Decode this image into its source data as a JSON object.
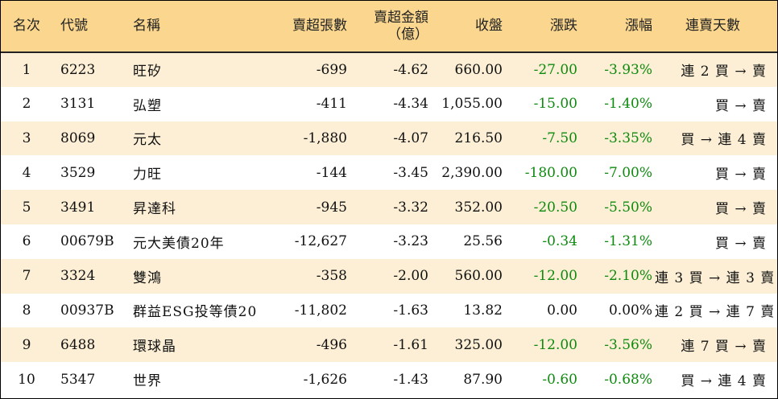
{
  "headers": {
    "rank": "名次",
    "code": "代號",
    "name": "名稱",
    "sell_lots": "賣超張數",
    "sell_amount_line1": "賣超金額",
    "sell_amount_line2": "（億）",
    "close": "收盤",
    "change": "漲跌",
    "change_pct": "漲幅",
    "streak": "連賣天數"
  },
  "rows": [
    {
      "rank": "1",
      "code": "6223",
      "name": "旺矽",
      "sell_lots": "-699",
      "sell_amount": "-4.62",
      "close": "660.00",
      "change": "-27.00",
      "change_pct": "-3.93%",
      "streak": "連 2 買 → 賣"
    },
    {
      "rank": "2",
      "code": "3131",
      "name": "弘塑",
      "sell_lots": "-411",
      "sell_amount": "-4.34",
      "close": "1,055.00",
      "change": "-15.00",
      "change_pct": "-1.40%",
      "streak": "買 → 賣"
    },
    {
      "rank": "3",
      "code": "8069",
      "name": "元太",
      "sell_lots": "-1,880",
      "sell_amount": "-4.07",
      "close": "216.50",
      "change": "-7.50",
      "change_pct": "-3.35%",
      "streak": "買 → 連 4 賣"
    },
    {
      "rank": "4",
      "code": "3529",
      "name": "力旺",
      "sell_lots": "-144",
      "sell_amount": "-3.45",
      "close": "2,390.00",
      "change": "-180.00",
      "change_pct": "-7.00%",
      "streak": "買 → 賣"
    },
    {
      "rank": "5",
      "code": "3491",
      "name": "昇達科",
      "sell_lots": "-945",
      "sell_amount": "-3.32",
      "close": "352.00",
      "change": "-20.50",
      "change_pct": "-5.50%",
      "streak": "買 → 賣"
    },
    {
      "rank": "6",
      "code": "00679B",
      "name": "元大美債20年",
      "sell_lots": "-12,627",
      "sell_amount": "-3.23",
      "close": "25.56",
      "change": "-0.34",
      "change_pct": "-1.31%",
      "streak": "買 → 賣"
    },
    {
      "rank": "7",
      "code": "3324",
      "name": "雙鴻",
      "sell_lots": "-358",
      "sell_amount": "-2.00",
      "close": "560.00",
      "change": "-12.00",
      "change_pct": "-2.10%",
      "streak": "連 3 買 → 連 3 賣"
    },
    {
      "rank": "8",
      "code": "00937B",
      "name": "群益ESG投等債20",
      "sell_lots": "-11,802",
      "sell_amount": "-1.63",
      "close": "13.82",
      "change": "0.00",
      "change_pct": "0.00%",
      "streak": "連 2 買 → 連 7 賣"
    },
    {
      "rank": "9",
      "code": "6488",
      "name": "環球晶",
      "sell_lots": "-496",
      "sell_amount": "-1.61",
      "close": "325.00",
      "change": "-12.00",
      "change_pct": "-3.56%",
      "streak": "連 7 買 → 賣"
    },
    {
      "rank": "10",
      "code": "5347",
      "name": "世界",
      "sell_lots": "-1,626",
      "sell_amount": "-1.43",
      "close": "87.90",
      "change": "-0.60",
      "change_pct": "-0.68%",
      "streak": "買 → 連 4 賣"
    }
  ],
  "colors": {
    "header_bg": "#fad68e",
    "odd_row_bg": "#fcefd5",
    "negative_change": "#0e8a0e"
  }
}
